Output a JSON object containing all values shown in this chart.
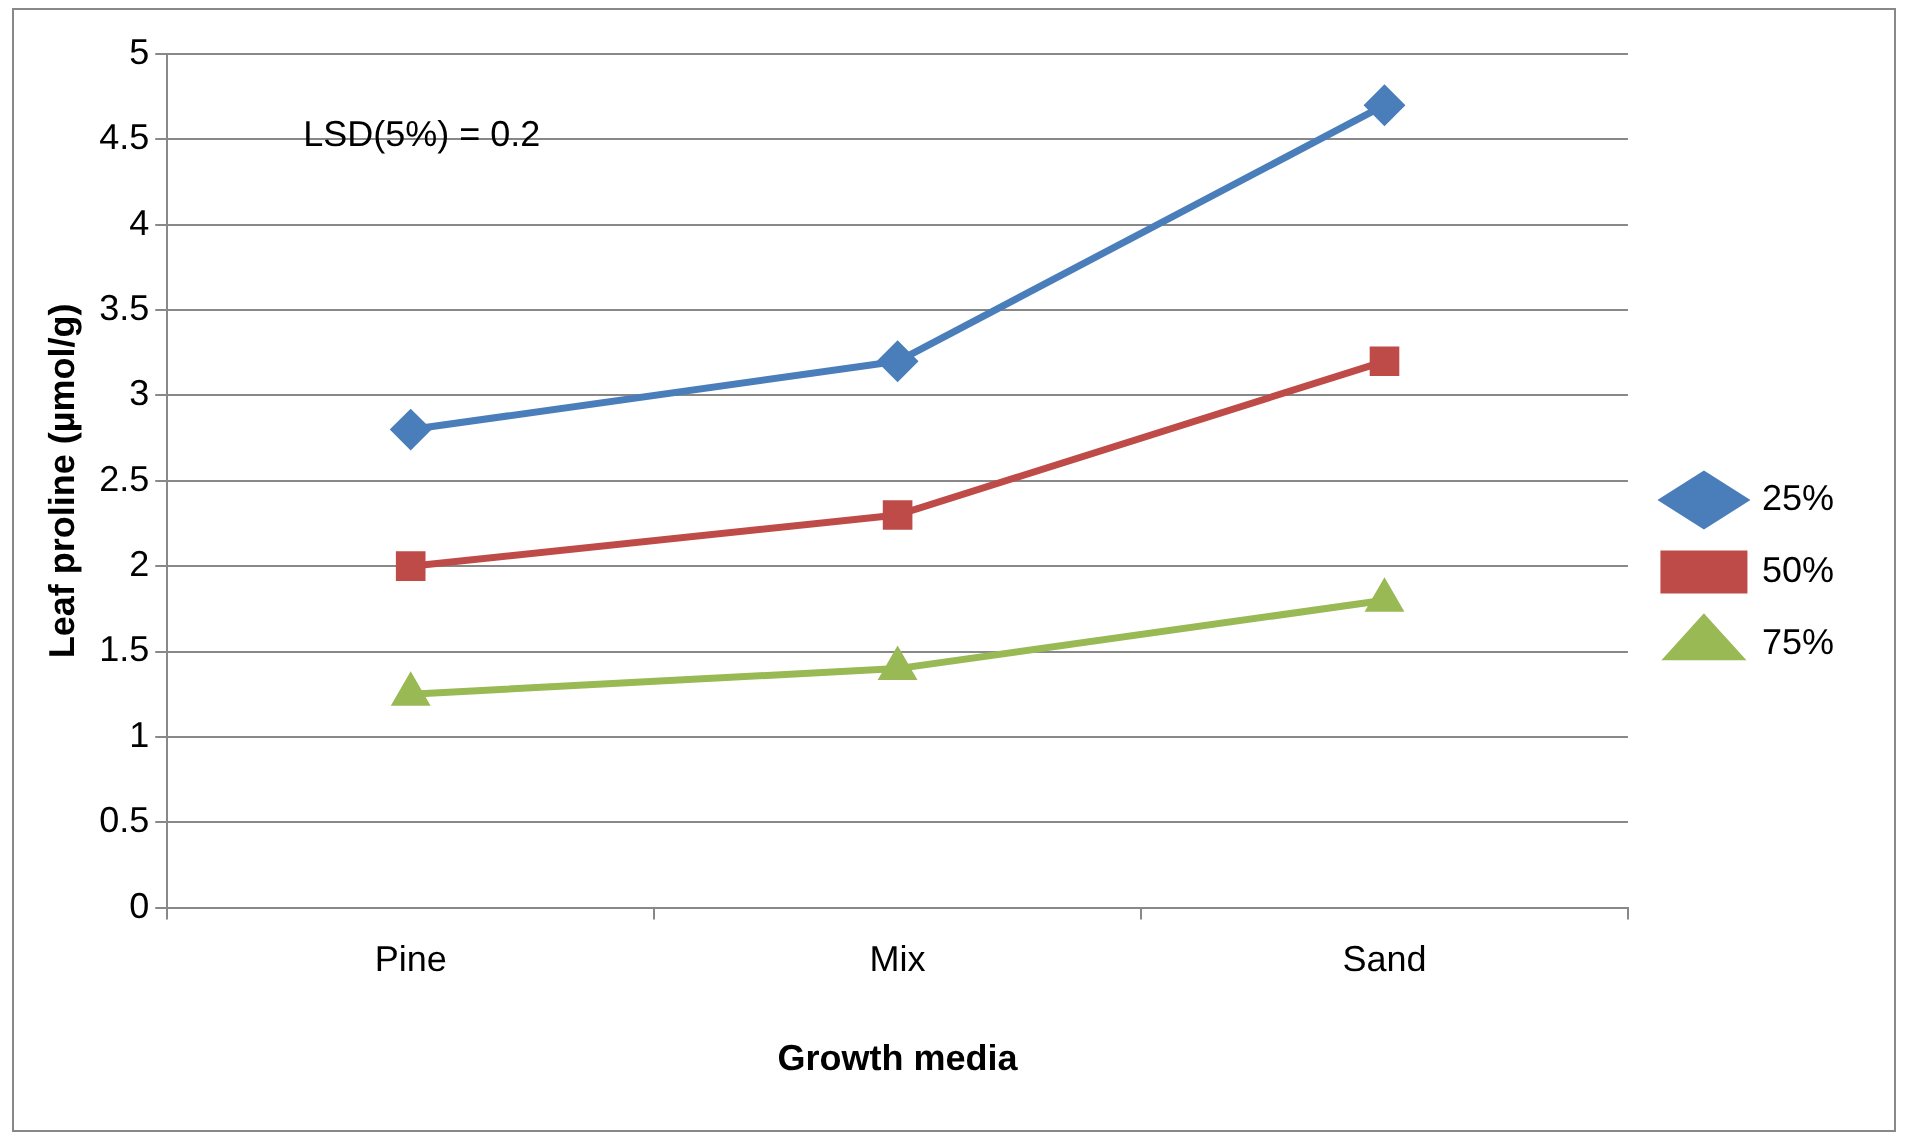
{
  "chart_data": {
    "type": "line",
    "xlabel": "Growth media",
    "ylabel": "Leaf proline (µmol/g)",
    "categories": [
      "Pine",
      "Mix",
      "Sand"
    ],
    "series": [
      {
        "name": "25%",
        "color": "#4a7ebb",
        "marker": "diamond",
        "values": [
          2.8,
          3.2,
          4.7
        ]
      },
      {
        "name": "50%",
        "color": "#be4b48",
        "marker": "square",
        "values": [
          2.0,
          2.3,
          3.2
        ]
      },
      {
        "name": "75%",
        "color": "#98b954",
        "marker": "triangle",
        "values": [
          1.25,
          1.4,
          1.8
        ]
      }
    ],
    "ylim": [
      0,
      5
    ],
    "yticks": [
      0,
      0.5,
      1,
      1.5,
      2,
      2.5,
      3,
      3.5,
      4,
      4.5,
      5
    ],
    "grid": "y",
    "legend": "right",
    "line_style": "solid",
    "annotations": [
      "LSD(5%) = 0.2"
    ]
  }
}
